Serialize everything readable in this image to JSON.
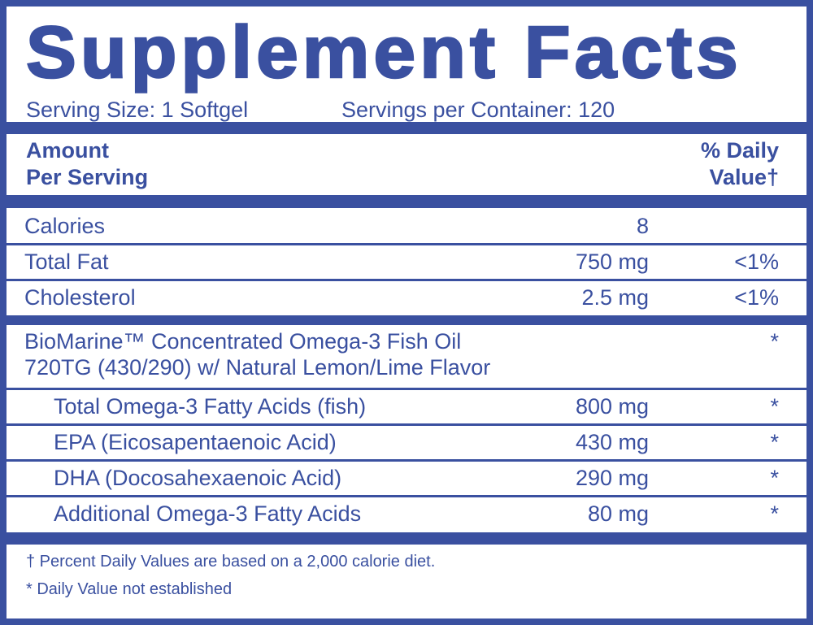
{
  "title": "Supplement Facts",
  "serving_size": "Serving Size: 1 Softgel",
  "servings_per_container": "Servings per Container: 120",
  "header": {
    "amount_line1": "Amount",
    "amount_line2": "Per Serving",
    "dv_line1": "% Daily",
    "dv_line2": "Value†"
  },
  "basic_rows": [
    {
      "name": "Calories",
      "amount": "8",
      "dv": ""
    },
    {
      "name": "Total Fat",
      "amount": "750 mg",
      "dv": "<1%"
    },
    {
      "name": "Cholesterol",
      "amount": "2.5 mg",
      "dv": "<1%"
    }
  ],
  "ingredient": {
    "line1": "BioMarine™ Concentrated Omega-3 Fish Oil",
    "line2": "720TG (430/290) w/ Natural Lemon/Lime Flavor",
    "dv": "*"
  },
  "sub_rows": [
    {
      "name": "Total Omega-3 Fatty Acids (fish)",
      "amount": "800 mg",
      "dv": "*"
    },
    {
      "name": "EPA  (Eicosapentaenoic Acid)",
      "amount": "430 mg",
      "dv": "*"
    },
    {
      "name": "DHA (Docosahexaenoic Acid)",
      "amount": "290 mg",
      "dv": "*"
    },
    {
      "name": "Additional Omega-3 Fatty Acids",
      "amount": "80 mg",
      "dv": "*"
    }
  ],
  "footnotes": [
    "† Percent Daily Values are based on a 2,000 calorie diet.",
    "* Daily Value not established"
  ],
  "colors": {
    "label_blue": "#3a50a0"
  }
}
